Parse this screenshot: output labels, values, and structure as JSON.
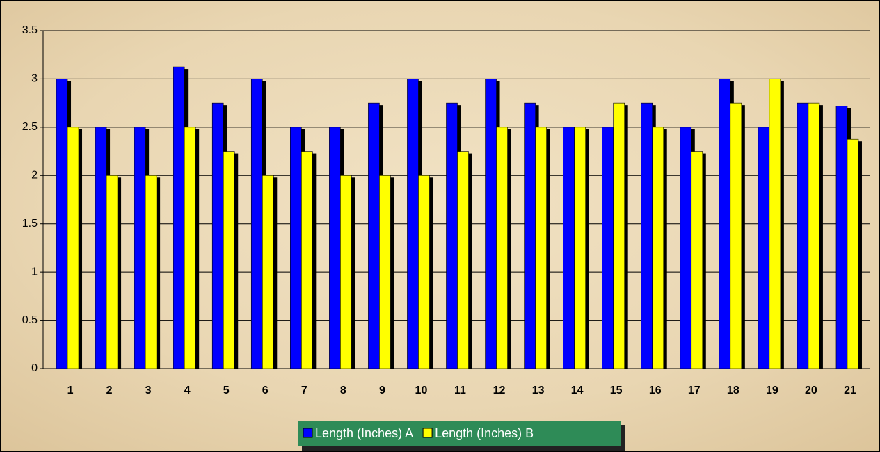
{
  "chart_data": {
    "type": "bar",
    "categories": [
      "1",
      "2",
      "3",
      "4",
      "5",
      "6",
      "7",
      "8",
      "9",
      "10",
      "11",
      "12",
      "13",
      "14",
      "15",
      "16",
      "17",
      "18",
      "19",
      "20",
      "21"
    ],
    "series": [
      {
        "name": "Length (Inches) A",
        "color": "#0000ff",
        "values": [
          3,
          2.5,
          2.5,
          3.125,
          2.75,
          3,
          2.5,
          2.5,
          2.75,
          3,
          2.75,
          3,
          2.75,
          2.5,
          2.5,
          2.75,
          2.5,
          3,
          2.5,
          2.75,
          2.72
        ]
      },
      {
        "name": "Length (Inches) B",
        "color": "#ffff00",
        "values": [
          2.5,
          2,
          2,
          2.5,
          2.25,
          2,
          2.25,
          2,
          2,
          2,
          2.25,
          2.5,
          2.5,
          2.5,
          2.75,
          2.5,
          2.25,
          2.75,
          3,
          2.75,
          2.375
        ]
      }
    ],
    "ylim": [
      0,
      3.5
    ],
    "yticks": [
      0,
      0.5,
      1,
      1.5,
      2,
      2.5,
      3,
      3.5
    ],
    "grid": true,
    "legend": "bottom"
  }
}
